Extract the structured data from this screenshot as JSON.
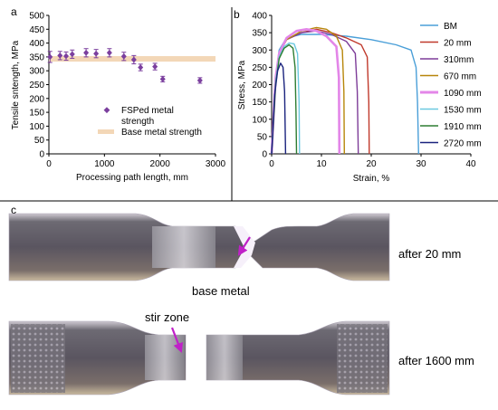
{
  "panels": {
    "a": "a",
    "b": "b",
    "c": "c"
  },
  "colors": {
    "fsp": "#7b3f9e",
    "base_band": "#f3d7b7",
    "BM": "#4a9fd8",
    "20 mm": "#c0392b",
    "310mm": "#7d3c98",
    "670 mm": "#b7860b",
    "1090 mm": "#e386e8",
    "1530 mm": "#6cc9e0",
    "1910 mm": "#2e7d32",
    "2720 mm": "#1a237e",
    "annot_arrow": "#c020c8"
  },
  "chart_data": [
    {
      "type": "scatter",
      "panel": "a",
      "xlabel": "Processing path length, mm",
      "ylabel": "Tensile sntength, MPa",
      "xlim": [
        0,
        3000
      ],
      "ylim": [
        0,
        500
      ],
      "xticks": [
        0,
        1000,
        2000,
        3000
      ],
      "yticks": [
        0,
        50,
        100,
        150,
        200,
        250,
        300,
        350,
        400,
        450,
        500
      ],
      "series": [
        {
          "name": "FSPed metal strength",
          "points": [
            {
              "x": 20,
              "y": 350,
              "err": 20
            },
            {
              "x": 200,
              "y": 355,
              "err": 15
            },
            {
              "x": 310,
              "y": 353,
              "err": 15
            },
            {
              "x": 420,
              "y": 360,
              "err": 15
            },
            {
              "x": 670,
              "y": 365,
              "err": 15
            },
            {
              "x": 850,
              "y": 362,
              "err": 15
            },
            {
              "x": 1090,
              "y": 365,
              "err": 15
            },
            {
              "x": 1350,
              "y": 352,
              "err": 15
            },
            {
              "x": 1530,
              "y": 340,
              "err": 15
            },
            {
              "x": 1650,
              "y": 312,
              "err": 12
            },
            {
              "x": 1910,
              "y": 315,
              "err": 12
            },
            {
              "x": 2050,
              "y": 270,
              "err": 10
            },
            {
              "x": 2720,
              "y": 265,
              "err": 10
            }
          ]
        },
        {
          "name": "Base metal strength",
          "band": [
            333,
            353
          ]
        }
      ],
      "legend": "lower-right"
    },
    {
      "type": "line",
      "panel": "b",
      "xlabel": "Strain, %",
      "ylabel": "Stress, MPa",
      "xlim": [
        0,
        40
      ],
      "ylim": [
        0,
        400
      ],
      "xticks": [
        0,
        10,
        20,
        30,
        40
      ],
      "yticks": [
        0,
        50,
        100,
        150,
        200,
        250,
        300,
        350,
        400
      ],
      "legend": "right",
      "series": [
        {
          "name": "BM",
          "points": [
            [
              0,
              0
            ],
            [
              0.8,
              220
            ],
            [
              1.5,
              300
            ],
            [
              3,
              335
            ],
            [
              6,
              345
            ],
            [
              10,
              345
            ],
            [
              15,
              340
            ],
            [
              20,
              330
            ],
            [
              25,
              315
            ],
            [
              28,
              300
            ],
            [
              29,
              250
            ],
            [
              29.3,
              150
            ],
            [
              29.5,
              0
            ]
          ]
        },
        {
          "name": "20 mm",
          "points": [
            [
              0,
              0
            ],
            [
              0.8,
              220
            ],
            [
              1.5,
              290
            ],
            [
              3,
              330
            ],
            [
              6,
              350
            ],
            [
              9,
              360
            ],
            [
              12,
              350
            ],
            [
              15,
              335
            ],
            [
              18,
              315
            ],
            [
              19.2,
              280
            ],
            [
              19.5,
              150
            ],
            [
              19.6,
              0
            ]
          ]
        },
        {
          "name": "310mm",
          "points": [
            [
              0,
              0
            ],
            [
              0.8,
              220
            ],
            [
              1.5,
              290
            ],
            [
              3,
              330
            ],
            [
              6,
              350
            ],
            [
              9,
              355
            ],
            [
              12,
              345
            ],
            [
              15,
              325
            ],
            [
              16.8,
              290
            ],
            [
              17.2,
              180
            ],
            [
              17.4,
              0
            ]
          ]
        },
        {
          "name": "670 mm",
          "points": [
            [
              0,
              0
            ],
            [
              0.8,
              220
            ],
            [
              1.5,
              290
            ],
            [
              3,
              330
            ],
            [
              6,
              355
            ],
            [
              9,
              365
            ],
            [
              11,
              360
            ],
            [
              13,
              340
            ],
            [
              14.2,
              300
            ],
            [
              14.5,
              180
            ],
            [
              14.6,
              0
            ]
          ]
        },
        {
          "name": "1090 mm",
          "points": [
            [
              0,
              0
            ],
            [
              0.8,
              220
            ],
            [
              1.5,
              290
            ],
            [
              3,
              335
            ],
            [
              5,
              355
            ],
            [
              7,
              360
            ],
            [
              9,
              355
            ],
            [
              11,
              340
            ],
            [
              13,
              310
            ],
            [
              13.5,
              220
            ],
            [
              13.6,
              0
            ]
          ]
        },
        {
          "name": "1530 mm",
          "points": [
            [
              0,
              0
            ],
            [
              0.8,
              210
            ],
            [
              1.5,
              280
            ],
            [
              2.5,
              310
            ],
            [
              3.5,
              320
            ],
            [
              4.5,
              318
            ],
            [
              5.2,
              290
            ],
            [
              5.5,
              150
            ],
            [
              5.6,
              0
            ]
          ]
        },
        {
          "name": "1910 mm",
          "points": [
            [
              0,
              0
            ],
            [
              0.8,
              200
            ],
            [
              1.5,
              275
            ],
            [
              2.5,
              305
            ],
            [
              3.5,
              315
            ],
            [
              4.3,
              305
            ],
            [
              4.7,
              250
            ],
            [
              4.9,
              120
            ],
            [
              5,
              0
            ]
          ]
        },
        {
          "name": "2720 mm",
          "points": [
            [
              0,
              0
            ],
            [
              0.6,
              170
            ],
            [
              1.2,
              240
            ],
            [
              1.8,
              262
            ],
            [
              2.3,
              250
            ],
            [
              2.6,
              180
            ],
            [
              2.8,
              0
            ]
          ]
        }
      ]
    }
  ],
  "photos": {
    "top_label": "after 20 mm",
    "bottom_label": "after 1600 mm",
    "annotation_base": "base metal",
    "annotation_stir": "stir zone"
  }
}
